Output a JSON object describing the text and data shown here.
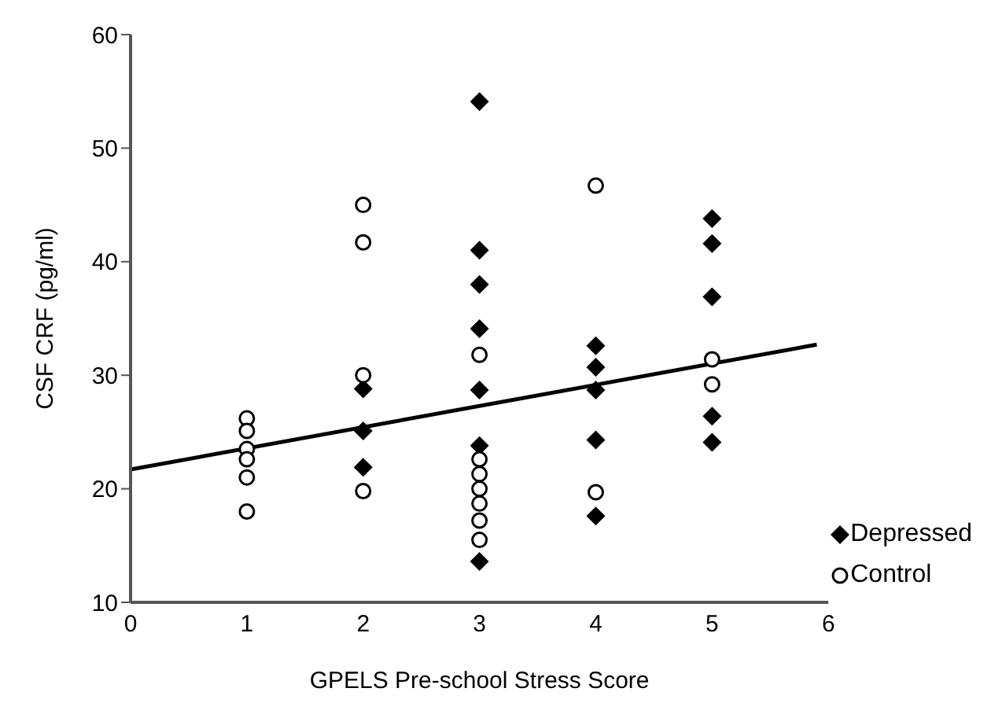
{
  "chart_data": {
    "type": "scatter",
    "xlabel": "GPELS Pre-school Stress Score",
    "ylabel": "CSF CRF (pg/ml)",
    "xlim": [
      0,
      6
    ],
    "xticks": [
      0,
      1,
      2,
      3,
      4,
      5,
      6
    ],
    "ylim": [
      10,
      60
    ],
    "yticks": [
      10,
      20,
      30,
      40,
      50,
      60
    ],
    "grid": false,
    "legend": "bottom right",
    "series": [
      {
        "name": "Depressed",
        "marker": "diamond",
        "color": "#000000",
        "x": [
          2,
          2,
          2,
          3,
          3,
          3,
          3,
          3,
          3,
          3,
          4,
          4,
          4,
          4,
          4,
          5,
          5,
          5,
          5,
          5
        ],
        "values": [
          28.8,
          25.1,
          21.9,
          54.1,
          41.0,
          38.0,
          34.1,
          28.7,
          23.8,
          13.6,
          32.6,
          30.7,
          28.7,
          24.3,
          17.6,
          43.8,
          41.6,
          36.9,
          26.4,
          24.1
        ]
      },
      {
        "name": "Control",
        "marker": "circle",
        "color": "#000000",
        "x": [
          1,
          1,
          1,
          1,
          1,
          1,
          2,
          2,
          2,
          2,
          3,
          3,
          3,
          3,
          3,
          3,
          3,
          4,
          4,
          5,
          5
        ],
        "values": [
          26.2,
          25.1,
          23.5,
          22.6,
          21.0,
          18.0,
          45.0,
          41.7,
          30.0,
          19.8,
          31.8,
          22.6,
          21.3,
          20.0,
          18.7,
          17.2,
          15.5,
          46.7,
          19.7,
          31.4,
          29.2
        ]
      },
      {
        "type": "line",
        "marker": "none",
        "line_style": "solid",
        "color": "#000000",
        "x": [
          0,
          5.9
        ],
        "values": [
          21.7,
          32.7
        ]
      }
    ]
  }
}
